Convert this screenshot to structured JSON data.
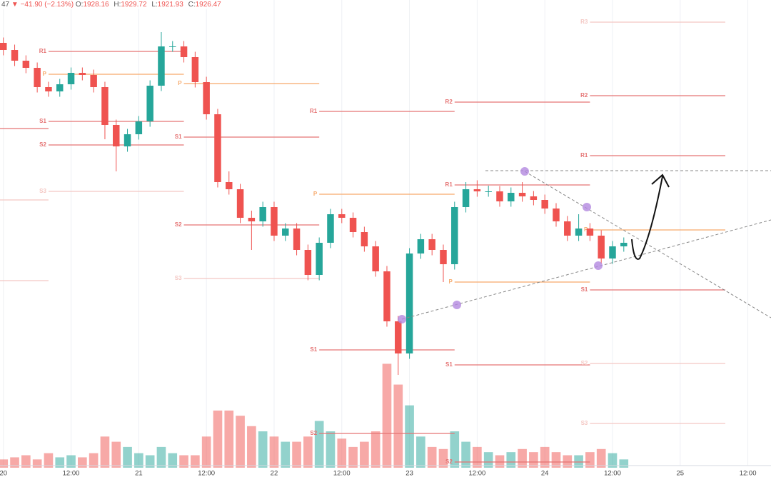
{
  "chart_data": {
    "type": "candlestick",
    "header": [
      "47",
      "▼",
      "−41.90 (−2.13%)",
      "O:",
      "1928.16",
      "H:",
      "1929.72",
      "L:",
      "1921.93",
      "C:",
      "1926.47"
    ],
    "x": [
      0,
      2,
      4,
      6,
      8,
      10,
      12,
      14,
      16,
      18,
      20,
      22,
      24,
      26,
      28,
      30,
      32,
      34,
      36,
      38,
      40,
      42,
      44,
      46,
      48,
      50,
      52,
      54,
      56,
      58,
      60,
      62,
      64,
      66,
      68,
      70,
      72,
      74,
      76,
      78,
      80,
      82,
      84,
      86,
      88,
      90,
      92,
      94,
      96,
      98,
      100,
      102,
      104,
      106,
      108,
      110
    ],
    "open": [
      1988,
      1986,
      1983,
      1981,
      1975.6,
      1974.4,
      1976.4,
      1979.6,
      1979,
      1975.6,
      1965,
      1959,
      1962.4,
      1966,
      1976,
      1987,
      1987,
      1984,
      1977,
      1968,
      1949,
      1947,
      1939,
      1938,
      1942,
      1934,
      1936,
      1930,
      1923,
      1932,
      1940,
      1939,
      1935,
      1931,
      1924,
      1910,
      1901,
      1929,
      1933,
      1930,
      1926,
      1942,
      1947,
      1946.4,
      1946.4,
      1943.6,
      1946,
      1945,
      1944,
      1941.6,
      1938,
      1934,
      1936,
      1934,
      1927.6,
      1931
    ],
    "high": [
      1989.5,
      1987.5,
      1984.5,
      1982.5,
      1977.1,
      1977.9,
      1981.1,
      1981.1,
      1980.5,
      1977.1,
      1966.5,
      1963.9,
      1967.5,
      1977.5,
      1991,
      1988.5,
      1988.5,
      1985.5,
      1978.5,
      1969.5,
      1952,
      1948.5,
      1941,
      1943.5,
      1943.5,
      1937.5,
      1937.5,
      1931.5,
      1933.5,
      1941.5,
      1941.5,
      1940.5,
      1936.5,
      1932.5,
      1925.5,
      1911.5,
      1930.5,
      1934.5,
      1934.5,
      1931.5,
      1943.5,
      1949,
      1949.5,
      1948,
      1947.9,
      1947.5,
      1949,
      1946.5,
      1945.5,
      1943.1,
      1939.5,
      1940,
      1937.5,
      1935.5,
      1932.5,
      1933.5
    ],
    "low": [
      1984.5,
      1981.5,
      1979.5,
      1974.1,
      1972.9,
      1972.9,
      1974.9,
      1977.5,
      1974.1,
      1961,
      1952,
      1957.5,
      1960.9,
      1964.5,
      1974.5,
      1985.5,
      1982.5,
      1975.5,
      1966.5,
      1947.5,
      1945.5,
      1937.5,
      1930,
      1936.5,
      1932.5,
      1932.5,
      1928.5,
      1921.5,
      1921.5,
      1930.5,
      1937.5,
      1933.5,
      1929.5,
      1922.5,
      1908.5,
      1895,
      1899.5,
      1927.5,
      1928.5,
      1921,
      1924.5,
      1940.5,
      1944.9,
      1944.9,
      1942.1,
      1942.1,
      1943.5,
      1942.5,
      1940.1,
      1936.5,
      1932.5,
      1932.5,
      1932.5,
      1926.1,
      1926.1,
      1929.5
    ],
    "close": [
      1986,
      1983,
      1981,
      1975.6,
      1974.4,
      1976.4,
      1979.6,
      1979,
      1975.6,
      1965,
      1959,
      1962.4,
      1966,
      1976,
      1987,
      1987,
      1984,
      1977,
      1968,
      1949,
      1947,
      1939,
      1938,
      1942,
      1934,
      1936,
      1930,
      1923,
      1932,
      1940,
      1939,
      1935,
      1931,
      1924,
      1910,
      1901,
      1929,
      1933,
      1930,
      1926,
      1942,
      1947,
      1946.4,
      1946.4,
      1943.6,
      1946,
      1945,
      1944,
      1941.6,
      1938,
      1934,
      1936,
      1934,
      1927.6,
      1931,
      1932
    ],
    "volume": [
      8,
      10,
      12,
      8,
      14,
      10,
      12,
      10,
      14,
      30,
      25,
      20,
      14,
      12,
      20,
      14,
      12,
      12,
      30,
      55,
      55,
      50,
      40,
      35,
      30,
      25,
      25,
      30,
      45,
      35,
      28,
      20,
      25,
      35,
      100,
      80,
      60,
      30,
      20,
      18,
      35,
      25,
      20,
      15,
      12,
      15,
      18,
      15,
      20,
      15,
      12,
      12,
      15,
      18,
      14,
      8
    ],
    "up_color": "#26a69a",
    "down_color": "#ef5350",
    "xlim": [
      -0.6,
      136.1
    ],
    "ylim": [
      1869,
      2000
    ],
    "y2lim": [
      0,
      450
    ],
    "xticks": [
      {
        "value": 0,
        "label": "20"
      },
      {
        "value": 12,
        "label": "12:00"
      },
      {
        "value": 24,
        "label": "21"
      },
      {
        "value": 36,
        "label": "12:00"
      },
      {
        "value": 48,
        "label": "22"
      },
      {
        "value": 60,
        "label": "12:00"
      },
      {
        "value": 72,
        "label": "23"
      },
      {
        "value": 84,
        "label": "12:00"
      },
      {
        "value": 96,
        "label": "24"
      },
      {
        "value": 108,
        "label": "12:00"
      },
      {
        "value": 120,
        "label": "25"
      },
      {
        "value": 132,
        "label": "12:00"
      }
    ],
    "grid": true,
    "pivots": [
      {
        "value": 1964,
        "x": [
          -0.6,
          8
        ],
        "color": "#e57373"
      },
      {
        "value": 1944,
        "x": [
          -0.6,
          8
        ],
        "color": "#f4c7c3"
      },
      {
        "value": 1921.4,
        "x": [
          -0.6,
          8
        ],
        "color": "#f4c7c3"
      },
      {
        "label": "R1",
        "value": 1985.6,
        "x": [
          8,
          32
        ],
        "color": "#e57373"
      },
      {
        "label": "P",
        "value": 1979.2,
        "x": [
          8,
          32
        ],
        "color": "#f6a96b"
      },
      {
        "label": "S1",
        "value": 1966,
        "x": [
          8,
          32
        ],
        "color": "#e57373"
      },
      {
        "label": "S2",
        "value": 1959.4,
        "x": [
          8,
          32
        ],
        "color": "#e57373"
      },
      {
        "label": "S3",
        "value": 1946.4,
        "x": [
          8,
          32
        ],
        "color": "#f4c7c3"
      },
      {
        "label": "P",
        "value": 1976.6,
        "x": [
          32,
          56
        ],
        "color": "#f6a96b"
      },
      {
        "label": "S1",
        "value": 1961.6,
        "x": [
          32,
          56
        ],
        "color": "#e57373"
      },
      {
        "label": "S2",
        "value": 1937,
        "x": [
          32,
          56
        ],
        "color": "#e57373"
      },
      {
        "label": "S3",
        "value": 1922,
        "x": [
          32,
          56
        ],
        "color": "#f4c7c3"
      },
      {
        "label": "R1",
        "value": 1968.8,
        "x": [
          56,
          80
        ],
        "color": "#e57373"
      },
      {
        "label": "P",
        "value": 1945.6,
        "x": [
          56,
          80
        ],
        "color": "#f6a96b"
      },
      {
        "label": "S1",
        "value": 1902,
        "x": [
          56,
          80
        ],
        "color": "#e57373"
      },
      {
        "label": "S2",
        "value": 1878.6,
        "x": [
          56,
          80
        ],
        "color": "#e57373"
      },
      {
        "label": "R2",
        "value": 1971.4,
        "x": [
          80,
          104
        ],
        "color": "#e57373"
      },
      {
        "label": "R1",
        "value": 1948.2,
        "x": [
          80,
          104
        ],
        "color": "#e57373"
      },
      {
        "label": "P",
        "value": 1921,
        "x": [
          80,
          104
        ],
        "color": "#f6a96b"
      },
      {
        "label": "S1",
        "value": 1897.8,
        "x": [
          80,
          104
        ],
        "color": "#e57373"
      },
      {
        "label": "S2",
        "value": 1870.6,
        "x": [
          80,
          104
        ],
        "color": "#e57373"
      },
      {
        "label": "R3",
        "value": 1993.8,
        "x": [
          104,
          128
        ],
        "color": "#f4c7c3"
      },
      {
        "label": "R2",
        "value": 1973.2,
        "x": [
          104,
          128
        ],
        "color": "#e57373"
      },
      {
        "label": "R1",
        "value": 1956.4,
        "x": [
          104,
          128
        ],
        "color": "#e57373"
      },
      {
        "label": "P",
        "value": 1935.6,
        "x": [
          104,
          128
        ],
        "color": "#f6a96b"
      },
      {
        "label": "S1",
        "value": 1918.8,
        "x": [
          104,
          128
        ],
        "color": "#e57373"
      },
      {
        "label": "S2",
        "value": 1898.2,
        "x": [
          104,
          128
        ],
        "color": "#f4c7c3"
      },
      {
        "label": "S3",
        "value": 1881.4,
        "x": [
          104,
          128
        ],
        "color": "#f4c7c3"
      }
    ]
  }
}
